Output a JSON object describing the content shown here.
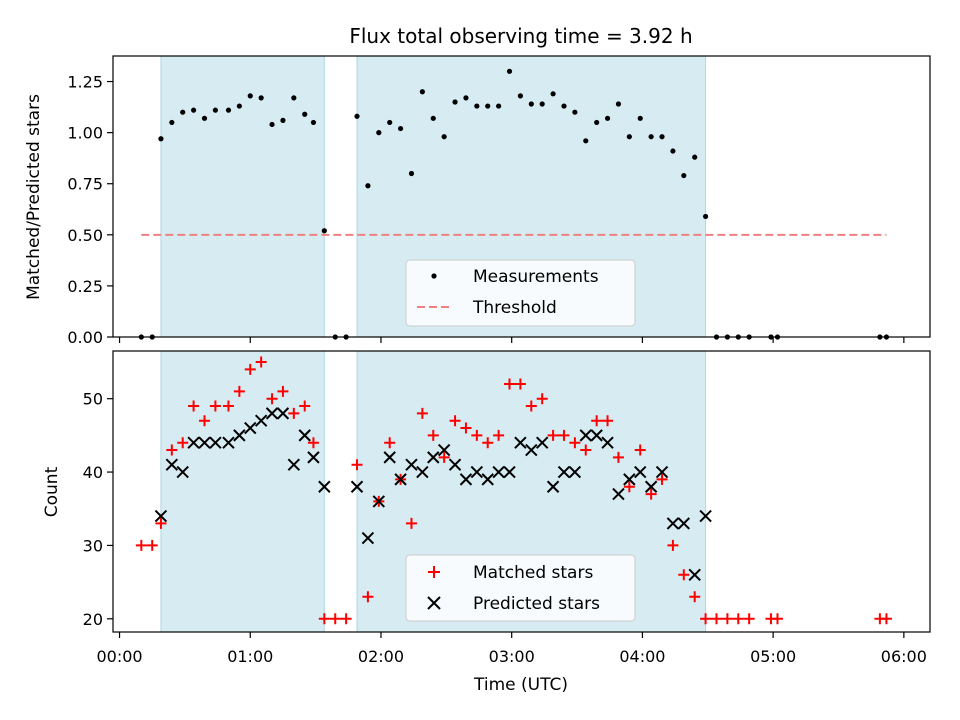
{
  "chart_data": [
    {
      "type": "scatter",
      "title": "Flux total observing time = 3.92 h",
      "ylabel": "Matched/Predicted stars",
      "xlim": [
        "-00:03",
        "06:12"
      ],
      "ylim": [
        0,
        1.375
      ],
      "yticks": [
        "0.00",
        "0.25",
        "0.50",
        "0.75",
        "1.00",
        "1.25"
      ],
      "grid": false,
      "legend_position": "lower-center",
      "shaded_intervals": [
        [
          "00:19",
          "01:34"
        ],
        [
          "01:49",
          "04:29"
        ]
      ],
      "threshold": {
        "name": "Threshold",
        "value": 0.5,
        "x_from": "00:10",
        "x_to": "05:52",
        "color": "#f08080"
      },
      "series": [
        {
          "name": "Measurements",
          "color": "#000000",
          "points": [
            [
              "00:10",
              0
            ],
            [
              "00:15",
              0
            ],
            [
              "00:19",
              0.97
            ],
            [
              "00:24",
              1.05
            ],
            [
              "00:29",
              1.1
            ],
            [
              "00:34",
              1.11
            ],
            [
              "00:39",
              1.07
            ],
            [
              "00:44",
              1.11
            ],
            [
              "00:50",
              1.11
            ],
            [
              "00:55",
              1.13
            ],
            [
              "01:00",
              1.18
            ],
            [
              "01:05",
              1.17
            ],
            [
              "01:10",
              1.04
            ],
            [
              "01:15",
              1.06
            ],
            [
              "01:20",
              1.17
            ],
            [
              "01:25",
              1.09
            ],
            [
              "01:29",
              1.05
            ],
            [
              "01:34",
              0.52
            ],
            [
              "01:39",
              0
            ],
            [
              "01:44",
              0
            ],
            [
              "01:49",
              1.08
            ],
            [
              "01:54",
              0.74
            ],
            [
              "01:59",
              1.0
            ],
            [
              "02:04",
              1.05
            ],
            [
              "02:09",
              1.02
            ],
            [
              "02:14",
              0.8
            ],
            [
              "02:19",
              1.2
            ],
            [
              "02:24",
              1.07
            ],
            [
              "02:29",
              0.98
            ],
            [
              "02:34",
              1.15
            ],
            [
              "02:39",
              1.17
            ],
            [
              "02:44",
              1.13
            ],
            [
              "02:49",
              1.13
            ],
            [
              "02:54",
              1.13
            ],
            [
              "02:59",
              1.3
            ],
            [
              "03:04",
              1.18
            ],
            [
              "03:09",
              1.14
            ],
            [
              "03:14",
              1.14
            ],
            [
              "03:19",
              1.19
            ],
            [
              "03:24",
              1.13
            ],
            [
              "03:29",
              1.1
            ],
            [
              "03:34",
              0.96
            ],
            [
              "03:39",
              1.05
            ],
            [
              "03:44",
              1.07
            ],
            [
              "03:49",
              1.14
            ],
            [
              "03:54",
              0.98
            ],
            [
              "03:59",
              1.07
            ],
            [
              "04:04",
              0.98
            ],
            [
              "04:09",
              0.98
            ],
            [
              "04:14",
              0.91
            ],
            [
              "04:19",
              0.79
            ],
            [
              "04:24",
              0.88
            ],
            [
              "04:29",
              0.59
            ],
            [
              "04:34",
              0
            ],
            [
              "04:39",
              0
            ],
            [
              "04:44",
              0
            ],
            [
              "04:49",
              0
            ],
            [
              "04:59",
              0
            ],
            [
              "05:02",
              0
            ],
            [
              "05:49",
              0
            ],
            [
              "05:52",
              0
            ]
          ]
        }
      ]
    },
    {
      "type": "scatter",
      "xlabel": "Time (UTC)",
      "ylabel": "Count",
      "xlim": [
        "-00:03",
        "06:12"
      ],
      "ylim": [
        18.2,
        56.5
      ],
      "xticks": [
        "00:00",
        "01:00",
        "02:00",
        "03:00",
        "04:00",
        "05:00",
        "06:00"
      ],
      "yticks": [
        "20",
        "30",
        "40",
        "50"
      ],
      "grid": false,
      "legend_position": "lower-center",
      "shaded_intervals": [
        [
          "00:19",
          "01:34"
        ],
        [
          "01:49",
          "04:29"
        ]
      ],
      "series": [
        {
          "name": "Matched stars",
          "marker": "plus",
          "color": "#ff0000",
          "points": [
            [
              "00:10",
              30
            ],
            [
              "00:15",
              30
            ],
            [
              "00:19",
              33
            ],
            [
              "00:24",
              43
            ],
            [
              "00:29",
              44
            ],
            [
              "00:34",
              49
            ],
            [
              "00:39",
              47
            ],
            [
              "00:44",
              49
            ],
            [
              "00:50",
              49
            ],
            [
              "00:55",
              51
            ],
            [
              "01:00",
              54
            ],
            [
              "01:05",
              55
            ],
            [
              "01:10",
              50
            ],
            [
              "01:15",
              51
            ],
            [
              "01:20",
              48
            ],
            [
              "01:25",
              49
            ],
            [
              "01:29",
              44
            ],
            [
              "01:34",
              20
            ],
            [
              "01:39",
              20
            ],
            [
              "01:44",
              20
            ],
            [
              "01:49",
              41
            ],
            [
              "01:54",
              23
            ],
            [
              "01:59",
              36
            ],
            [
              "02:04",
              44
            ],
            [
              "02:09",
              39
            ],
            [
              "02:14",
              33
            ],
            [
              "02:19",
              48
            ],
            [
              "02:24",
              45
            ],
            [
              "02:29",
              42
            ],
            [
              "02:34",
              47
            ],
            [
              "02:39",
              46
            ],
            [
              "02:44",
              45
            ],
            [
              "02:49",
              44
            ],
            [
              "02:54",
              45
            ],
            [
              "02:59",
              52
            ],
            [
              "03:04",
              52
            ],
            [
              "03:09",
              49
            ],
            [
              "03:14",
              50
            ],
            [
              "03:19",
              45
            ],
            [
              "03:24",
              45
            ],
            [
              "03:29",
              44
            ],
            [
              "03:34",
              43
            ],
            [
              "03:39",
              47
            ],
            [
              "03:44",
              47
            ],
            [
              "03:49",
              42
            ],
            [
              "03:54",
              38
            ],
            [
              "03:59",
              43
            ],
            [
              "04:04",
              37
            ],
            [
              "04:09",
              39
            ],
            [
              "04:14",
              30
            ],
            [
              "04:19",
              26
            ],
            [
              "04:24",
              23
            ],
            [
              "04:29",
              20
            ],
            [
              "04:34",
              20
            ],
            [
              "04:39",
              20
            ],
            [
              "04:44",
              20
            ],
            [
              "04:49",
              20
            ],
            [
              "04:59",
              20
            ],
            [
              "05:02",
              20
            ],
            [
              "05:49",
              20
            ],
            [
              "05:52",
              20
            ]
          ]
        },
        {
          "name": "Predicted stars",
          "marker": "x",
          "color": "#000000",
          "points": [
            [
              "00:19",
              34
            ],
            [
              "00:24",
              41
            ],
            [
              "00:29",
              40
            ],
            [
              "00:34",
              44
            ],
            [
              "00:39",
              44
            ],
            [
              "00:44",
              44
            ],
            [
              "00:50",
              44
            ],
            [
              "00:55",
              45
            ],
            [
              "01:00",
              46
            ],
            [
              "01:05",
              47
            ],
            [
              "01:10",
              48
            ],
            [
              "01:15",
              48
            ],
            [
              "01:20",
              41
            ],
            [
              "01:25",
              45
            ],
            [
              "01:29",
              42
            ],
            [
              "01:34",
              38
            ],
            [
              "01:49",
              38
            ],
            [
              "01:54",
              31
            ],
            [
              "01:59",
              36
            ],
            [
              "02:04",
              42
            ],
            [
              "02:09",
              39
            ],
            [
              "02:14",
              41
            ],
            [
              "02:19",
              40
            ],
            [
              "02:24",
              42
            ],
            [
              "02:29",
              43
            ],
            [
              "02:34",
              41
            ],
            [
              "02:39",
              39
            ],
            [
              "02:44",
              40
            ],
            [
              "02:49",
              39
            ],
            [
              "02:54",
              40
            ],
            [
              "02:59",
              40
            ],
            [
              "03:04",
              44
            ],
            [
              "03:09",
              43
            ],
            [
              "03:14",
              44
            ],
            [
              "03:19",
              38
            ],
            [
              "03:24",
              40
            ],
            [
              "03:29",
              40
            ],
            [
              "03:34",
              45
            ],
            [
              "03:39",
              45
            ],
            [
              "03:44",
              44
            ],
            [
              "03:49",
              37
            ],
            [
              "03:54",
              39
            ],
            [
              "03:59",
              40
            ],
            [
              "04:04",
              38
            ],
            [
              "04:09",
              40
            ],
            [
              "04:14",
              33
            ],
            [
              "04:19",
              33
            ],
            [
              "04:24",
              26
            ],
            [
              "04:29",
              34
            ]
          ]
        }
      ]
    }
  ]
}
